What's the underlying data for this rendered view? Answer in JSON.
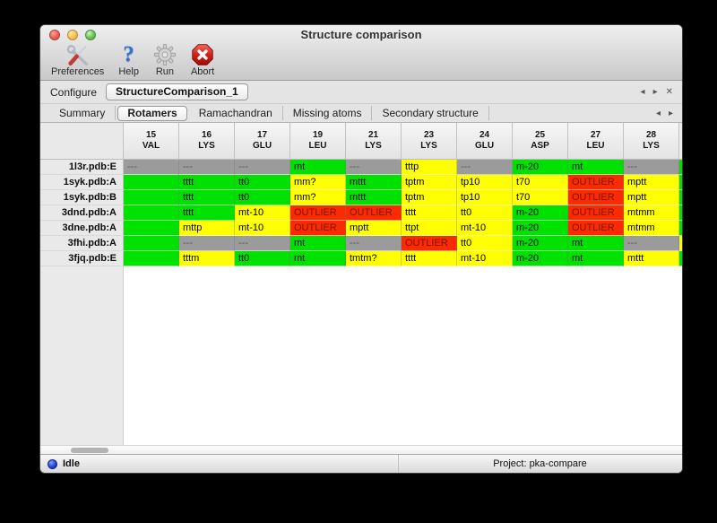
{
  "window": {
    "title": "Structure comparison"
  },
  "toolbar": {
    "items": [
      {
        "label": "Preferences",
        "icon": "tools-icon"
      },
      {
        "label": "Help",
        "icon": "question-icon"
      },
      {
        "label": "Run",
        "icon": "gear-icon"
      },
      {
        "label": "Abort",
        "icon": "abort-icon"
      }
    ]
  },
  "configure": {
    "label": "Configure",
    "selected_config": "StructureComparison_1",
    "nav": {
      "left": "◂",
      "right": "▸",
      "close": "✕"
    }
  },
  "tabs": {
    "items": [
      "Summary",
      "Rotamers",
      "Ramachandran",
      "Missing atoms",
      "Secondary structure"
    ],
    "selected": "Rotamers",
    "nav": {
      "left": "◂",
      "right": "▸"
    }
  },
  "table": {
    "columns": [
      {
        "num": "15",
        "res": "VAL"
      },
      {
        "num": "16",
        "res": "LYS"
      },
      {
        "num": "17",
        "res": "GLU"
      },
      {
        "num": "19",
        "res": "LEU"
      },
      {
        "num": "21",
        "res": "LYS"
      },
      {
        "num": "23",
        "res": "LYS"
      },
      {
        "num": "24",
        "res": "GLU"
      },
      {
        "num": "25",
        "res": "ASP"
      },
      {
        "num": "27",
        "res": "LEU"
      },
      {
        "num": "28",
        "res": "LYS"
      }
    ],
    "rows": [
      {
        "label": "1l3r.pdb:E",
        "partial": "green",
        "cells": [
          [
            "---",
            "gray"
          ],
          [
            "---",
            "gray"
          ],
          [
            "---",
            "gray"
          ],
          [
            "mt",
            "green"
          ],
          [
            "---",
            "gray"
          ],
          [
            "tttp",
            "yellow"
          ],
          [
            "---",
            "gray"
          ],
          [
            "m-20",
            "green"
          ],
          [
            "mt",
            "green"
          ],
          [
            "---",
            "gray"
          ]
        ]
      },
      {
        "label": "1syk.pdb:A",
        "partial": "green",
        "cells": [
          [
            "",
            "green"
          ],
          [
            "tttt",
            "green"
          ],
          [
            "tt0",
            "green"
          ],
          [
            "mm?",
            "yellow"
          ],
          [
            "mttt",
            "green"
          ],
          [
            "tptm",
            "yellow"
          ],
          [
            "tp10",
            "yellow"
          ],
          [
            "t70",
            "yellow"
          ],
          [
            "OUTLIER",
            "red"
          ],
          [
            "mptt",
            "yellow"
          ]
        ]
      },
      {
        "label": "1syk.pdb:B",
        "partial": "green",
        "cells": [
          [
            "",
            "green"
          ],
          [
            "tttt",
            "green"
          ],
          [
            "tt0",
            "green"
          ],
          [
            "mm?",
            "yellow"
          ],
          [
            "mttt",
            "green"
          ],
          [
            "tptm",
            "yellow"
          ],
          [
            "tp10",
            "yellow"
          ],
          [
            "t70",
            "yellow"
          ],
          [
            "OUTLIER",
            "red"
          ],
          [
            "mptt",
            "yellow"
          ]
        ]
      },
      {
        "label": "3dnd.pdb:A",
        "partial": "green",
        "cells": [
          [
            "",
            "green"
          ],
          [
            "tttt",
            "green"
          ],
          [
            "mt-10",
            "yellow"
          ],
          [
            "OUTLIER",
            "red"
          ],
          [
            "OUTLIER",
            "red"
          ],
          [
            "tttt",
            "yellow"
          ],
          [
            "tt0",
            "yellow"
          ],
          [
            "m-20",
            "green"
          ],
          [
            "OUTLIER",
            "red"
          ],
          [
            "mtmm",
            "yellow"
          ]
        ]
      },
      {
        "label": "3dne.pdb:A",
        "partial": "green",
        "cells": [
          [
            "",
            "green"
          ],
          [
            "mttp",
            "yellow"
          ],
          [
            "mt-10",
            "yellow"
          ],
          [
            "OUTLIER",
            "red"
          ],
          [
            "mptt",
            "yellow"
          ],
          [
            "ttpt",
            "yellow"
          ],
          [
            "mt-10",
            "yellow"
          ],
          [
            "m-20",
            "green"
          ],
          [
            "OUTLIER",
            "red"
          ],
          [
            "mtmm",
            "yellow"
          ]
        ]
      },
      {
        "label": "3fhi.pdb:A",
        "partial": "yellow",
        "cells": [
          [
            "",
            "green"
          ],
          [
            "---",
            "gray"
          ],
          [
            "---",
            "gray"
          ],
          [
            "mt",
            "green"
          ],
          [
            "---",
            "gray"
          ],
          [
            "OUTLIER",
            "red"
          ],
          [
            "tt0",
            "yellow"
          ],
          [
            "m-20",
            "green"
          ],
          [
            "mt",
            "green"
          ],
          [
            "---",
            "gray"
          ]
        ]
      },
      {
        "label": "3fjq.pdb:E",
        "partial": "green",
        "cells": [
          [
            "",
            "green"
          ],
          [
            "tttm",
            "yellow"
          ],
          [
            "tt0",
            "green"
          ],
          [
            "mt",
            "green"
          ],
          [
            "tmtm?",
            "yellow"
          ],
          [
            "tttt",
            "yellow"
          ],
          [
            "mt-10",
            "yellow"
          ],
          [
            "m-20",
            "green"
          ],
          [
            "mt",
            "green"
          ],
          [
            "mttt",
            "yellow"
          ]
        ]
      }
    ]
  },
  "statusbar": {
    "status": "Idle",
    "project": "Project: pka-compare"
  },
  "colors": {
    "green": "#00e100",
    "yellow": "#ffff00",
    "red": "#fa2b00",
    "gray": "#9b9b9b",
    "red_text": "#7a1400",
    "gray_text": "#565656",
    "default_text": "#000000"
  }
}
